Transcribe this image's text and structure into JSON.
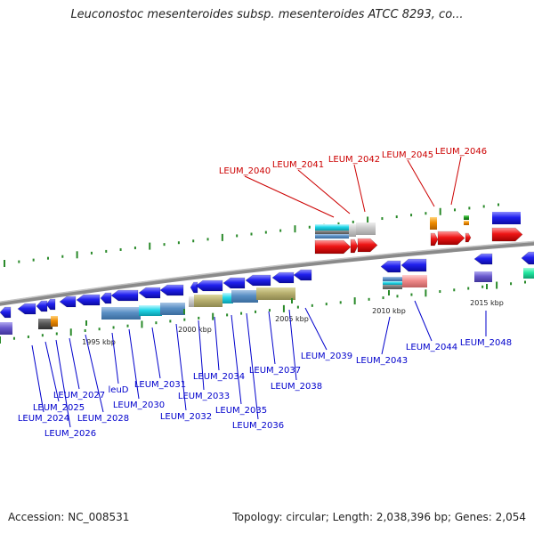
{
  "title": "Leuconostoc mesenteroides subsp. mesenteroides ATCC 8293, co...",
  "footer": {
    "accession": "Accession: NC_008531",
    "topology": "Topology: circular; Length: 2,038,396 bp; Genes: 2,054"
  },
  "colors": {
    "highlight_label": "#cc0000",
    "gene_label": "#0000cc",
    "forward_gene": "#1a1aee",
    "reverse_gene": "#ee1111",
    "backbone": "#8a8a8a",
    "tick": "#2a8a2a"
  },
  "scale_ticks": [
    "1995 kbp",
    "2000 kbp",
    "2005 kbp",
    "2010 kbp",
    "2015 kbp"
  ],
  "highlighted_genes": [
    "LEUM_2040",
    "LEUM_2041",
    "LEUM_2042",
    "LEUM_2045",
    "LEUM_2046"
  ],
  "gene_labels": [
    "LEUM_2024",
    "LEUM_2025",
    "LEUM_2026",
    "LEUM_2027",
    "LEUM_2028",
    "leuD",
    "LEUM_2030",
    "LEUM_2031",
    "LEUM_2032",
    "LEUM_2033",
    "LEUM_2034",
    "LEUM_2035",
    "LEUM_2036",
    "LEUM_2037",
    "LEUM_2038",
    "LEUM_2039",
    "LEUM_2043",
    "LEUM_2044",
    "LEUM_2048"
  ]
}
